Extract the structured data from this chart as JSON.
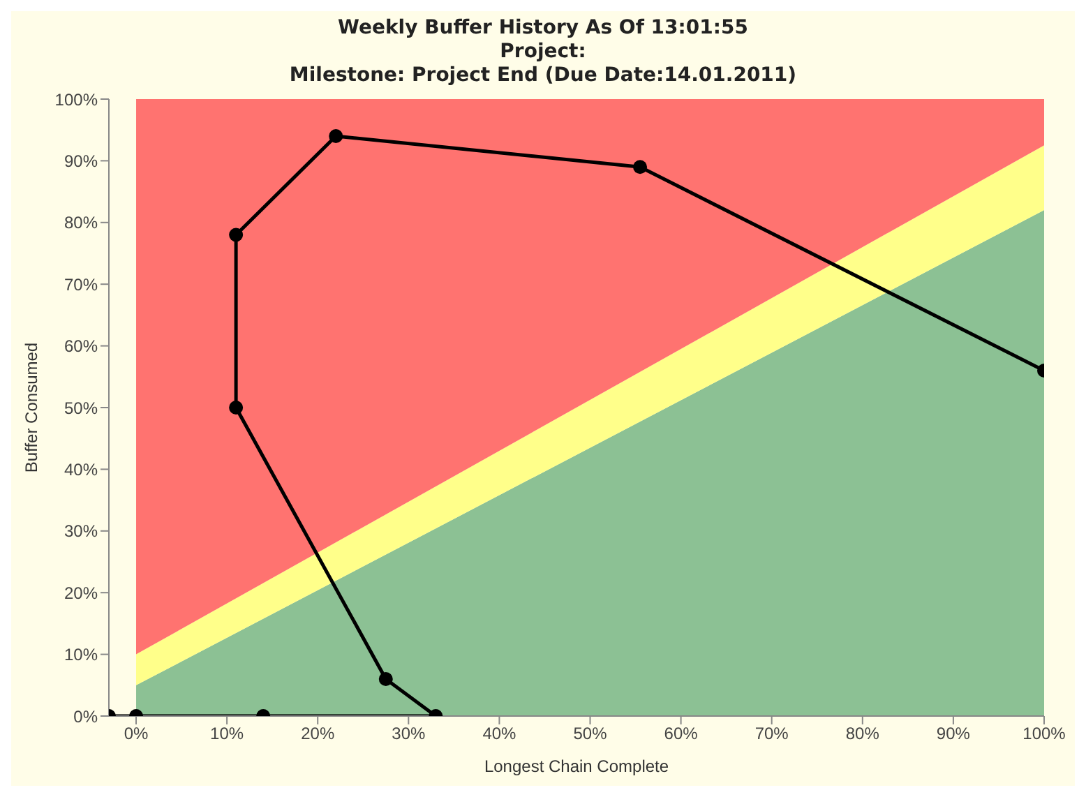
{
  "chart_data": {
    "type": "line",
    "title": "Weekly Buffer History As Of 13:01:55\nProject:\nMilestone: Project End (Due Date:14.01.2011)",
    "xlabel": "Longest Chain Complete",
    "ylabel": "Buffer Consumed",
    "xlim": [
      -3,
      100
    ],
    "ylim": [
      0,
      100
    ],
    "xticks": [
      {
        "value": 0,
        "label": "0%"
      },
      {
        "value": 10,
        "label": "10%"
      },
      {
        "value": 20,
        "label": "20%"
      },
      {
        "value": 30,
        "label": "30%"
      },
      {
        "value": 40,
        "label": "40%"
      },
      {
        "value": 50,
        "label": "50%"
      },
      {
        "value": 60,
        "label": "60%"
      },
      {
        "value": 70,
        "label": "70%"
      },
      {
        "value": 80,
        "label": "80%"
      },
      {
        "value": 90,
        "label": "90%"
      },
      {
        "value": 100,
        "label": "100%"
      }
    ],
    "yticks": [
      {
        "value": 0,
        "label": "0%"
      },
      {
        "value": 10,
        "label": "10%"
      },
      {
        "value": 20,
        "label": "20%"
      },
      {
        "value": 30,
        "label": "30%"
      },
      {
        "value": 40,
        "label": "40%"
      },
      {
        "value": 50,
        "label": "50%"
      },
      {
        "value": 60,
        "label": "60%"
      },
      {
        "value": 70,
        "label": "70%"
      },
      {
        "value": 80,
        "label": "80%"
      },
      {
        "value": 90,
        "label": "90%"
      },
      {
        "value": 100,
        "label": "100%"
      }
    ],
    "grid": false,
    "legend": false,
    "line_style": "solid",
    "stacked": true,
    "series": [
      {
        "type": "area",
        "color": "#8cc194",
        "x": [
          0,
          100
        ],
        "values": [
          5,
          82
        ]
      },
      {
        "type": "area",
        "color": "#ffff8a",
        "x": [
          0,
          100
        ],
        "values": [
          5,
          10.5
        ]
      },
      {
        "type": "area",
        "color": "#ff7370",
        "x": [
          0,
          100
        ],
        "values": [
          90,
          7.5
        ]
      },
      {
        "marker": "circle",
        "color": "#000000",
        "x": [
          -3,
          0,
          14,
          33,
          27.5,
          11,
          11,
          22,
          55.5,
          100
        ],
        "values": [
          0,
          0,
          0,
          0,
          6,
          50,
          78,
          94,
          89,
          56
        ]
      }
    ]
  }
}
